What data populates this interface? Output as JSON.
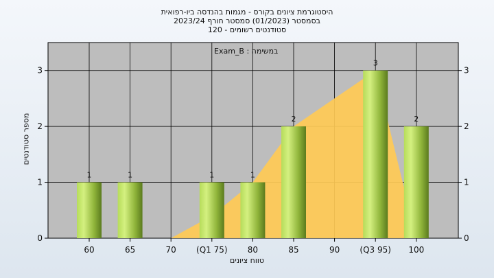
{
  "title_lines": [
    "היסטוגרמת ציונים בקורס - מגמות בהנדסה ביו-רפואית",
    "בסמסטר  (01/2023)  סמסטר חורף  2023/24",
    "סטודנטים רשומים - 120"
  ],
  "chart_data": {
    "type": "bar",
    "title": "היסטוגרמת ציונים בקורס - מגמות בהנדסה ביו-רפואית",
    "xlabel": "טווח ציונים",
    "ylabel": "מספר סטודנטים",
    "annotation": "במשימה : Exam_B",
    "categories": [
      "60",
      "65",
      "70",
      "(Q1 75)",
      "80",
      "85",
      "90",
      "(Q3 95)",
      "100"
    ],
    "values": [
      1,
      1,
      0,
      1,
      1,
      2,
      0,
      3,
      2
    ],
    "value_labels": [
      "1",
      "1",
      "",
      "1",
      "1",
      "2",
      "",
      "3",
      "2"
    ],
    "area_series": [
      0,
      0,
      0,
      0.4,
      1,
      2,
      2.5,
      3,
      0
    ],
    "ylim": [
      0,
      3.5
    ],
    "yticks": [
      "0",
      "1",
      "2",
      "3"
    ],
    "grid": true,
    "colors": {
      "plot_bg": "#bdbdbd",
      "area": "#ffca55",
      "bar_light": "#d4f080",
      "bar_dark": "#5b7b1e"
    }
  }
}
